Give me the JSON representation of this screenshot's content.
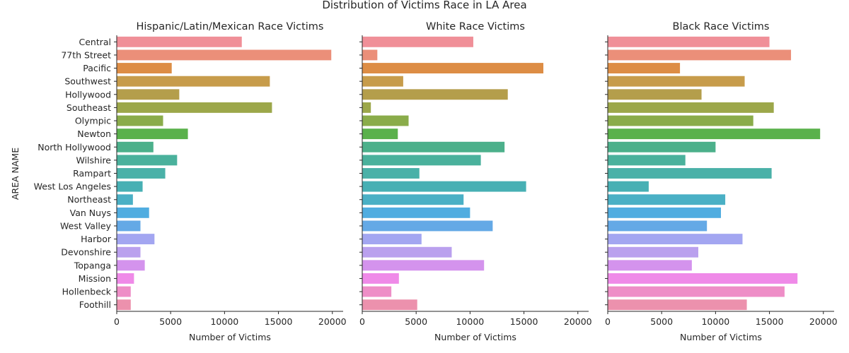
{
  "chart_data": {
    "type": "bar",
    "orientation": "horizontal",
    "suptitle": "Distribution of Victims Race in LA Area",
    "ylabel": "AREA NAME",
    "xlabel": "Number of Victims",
    "xlim": [
      0,
      21000
    ],
    "xticks": [
      0,
      5000,
      10000,
      15000,
      20000
    ],
    "categories": [
      "Central",
      "77th Street",
      "Pacific",
      "Southwest",
      "Hollywood",
      "Southeast",
      "Olympic",
      "Newton",
      "North Hollywood",
      "Wilshire",
      "Rampart",
      "West Los Angeles",
      "Northeast",
      "Van Nuys",
      "West Valley",
      "Harbor",
      "Devonshire",
      "Topanga",
      "Mission",
      "Hollenbeck",
      "Foothill"
    ],
    "colors": [
      "#f08f98",
      "#eb8f79",
      "#dd8d45",
      "#c79c4b",
      "#b49e4b",
      "#9ca74a",
      "#8aac4a",
      "#5ab14b",
      "#4cb08b",
      "#4ab19c",
      "#4ab1a8",
      "#47b0b4",
      "#4ab0c5",
      "#50ade0",
      "#64a9e6",
      "#a3a6f1",
      "#baa0ee",
      "#d493ed",
      "#ef8ae8",
      "#ee8ec7",
      "#ec91ad"
    ],
    "panels": [
      {
        "title": "Hispanic/Latin/Mexican Race Victims",
        "values": [
          11600,
          19900,
          5100,
          14200,
          5800,
          14400,
          4300,
          6600,
          3400,
          5600,
          4500,
          2400,
          1500,
          3000,
          2200,
          3500,
          2200,
          2600,
          1600,
          1300,
          1300
        ]
      },
      {
        "title": "White Race Victims",
        "values": [
          10300,
          1400,
          16800,
          3800,
          13500,
          800,
          4300,
          3300,
          13200,
          11000,
          5300,
          15200,
          9400,
          10000,
          12100,
          5500,
          8300,
          11300,
          3400,
          2700,
          5100
        ]
      },
      {
        "title": "Black Race Victims",
        "values": [
          15000,
          17000,
          6700,
          12700,
          8700,
          15400,
          13500,
          19700,
          10000,
          7200,
          15200,
          3800,
          10900,
          10500,
          9200,
          12500,
          8400,
          7800,
          17600,
          16400,
          12900
        ]
      }
    ]
  }
}
